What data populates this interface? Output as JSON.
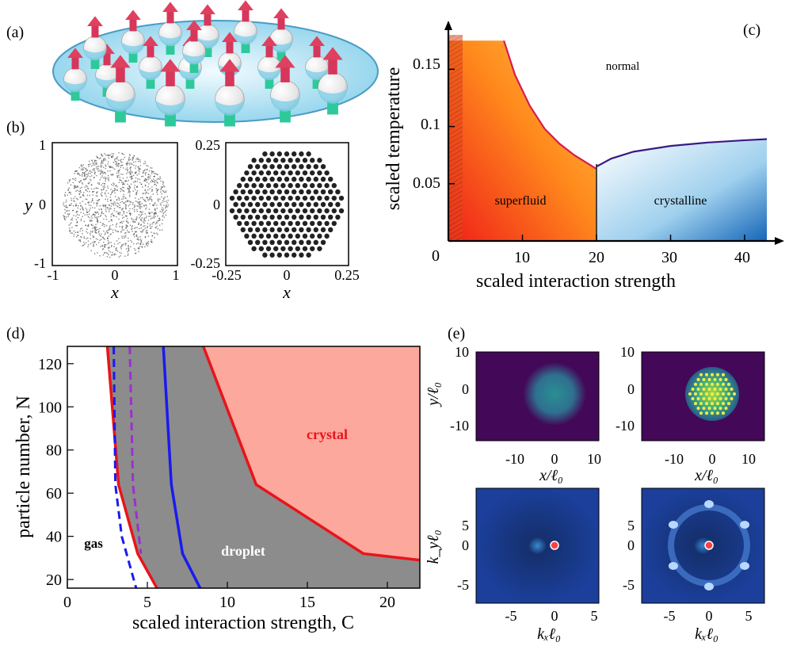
{
  "panel_labels": {
    "a": "(a)",
    "b": "(b)",
    "c": "(c)",
    "d": "(d)",
    "e": "(e)"
  },
  "colors": {
    "spin_arrow": "#d6365a",
    "spin_base": "#2ec99a",
    "disk": "#bfe6f2",
    "superfluid": "#ff8c1a",
    "crystalline": "#7fbde8",
    "gas": "#ffffff",
    "droplet": "#8c8c8c",
    "crystal": "#fca89c",
    "red_line": "#e8141c",
    "blue_line": "#1a1aee",
    "purple_line": "#9b30d0",
    "density_bg": "#430857",
    "momentum_bg": "#0c1b55"
  },
  "panel_b": {
    "left": {
      "xticks": [
        "-1",
        "0",
        "1"
      ],
      "yticks": [
        "1",
        "0",
        "-1"
      ],
      "xlabel": "x",
      "ylabel": "y"
    },
    "right": {
      "xticks": [
        "-0.25",
        "0",
        "0.25"
      ],
      "yticks": [
        "0.25",
        "0",
        "-0.25"
      ],
      "xlabel": "x"
    }
  },
  "panel_c": {
    "ylabel": "scaled temperature",
    "xlabel": "scaled interaction strength",
    "yticks": [
      "0.15",
      "0.1",
      "0.05"
    ],
    "xticks": [
      "0",
      "10",
      "20",
      "30",
      "40"
    ],
    "region_labels": {
      "normal": "normal",
      "superfluid": "superfluid",
      "crystalline": "crystalline"
    }
  },
  "panel_e": {
    "density_xticks": [
      "-10",
      "0",
      "10"
    ],
    "density_yticks": [
      "10",
      "0",
      "-10"
    ],
    "density_xlabel": "x/ℓ₀",
    "density_ylabel": "y/ℓ₀",
    "momentum_xticks": [
      "-5",
      "0",
      "5"
    ],
    "momentum_yticks": [
      "5",
      "0",
      "-5"
    ],
    "momentum_xlabel": "kₓℓ₀",
    "momentum_ylabel": "k_yℓ₀"
  },
  "chart_data": [
    {
      "panel": "c",
      "type": "area",
      "title": "",
      "xlabel": "scaled interaction strength",
      "ylabel": "scaled temperature",
      "xlim": [
        0,
        43
      ],
      "ylim": [
        0,
        0.18
      ],
      "series": [
        {
          "name": "superfluid boundary",
          "x": [
            7.5,
            9,
            11,
            13,
            15,
            17,
            19,
            20
          ],
          "y": [
            0.175,
            0.145,
            0.118,
            0.098,
            0.085,
            0.075,
            0.067,
            0.063
          ]
        },
        {
          "name": "crystalline boundary",
          "x": [
            20,
            22,
            25,
            30,
            35,
            40,
            43
          ],
          "y": [
            0.065,
            0.072,
            0.078,
            0.083,
            0.086,
            0.088,
            0.089
          ]
        }
      ],
      "regions": [
        "normal",
        "superfluid",
        "crystalline"
      ]
    },
    {
      "panel": "d",
      "type": "area",
      "title": "",
      "xlabel": "scaled interaction strength, C",
      "ylabel": "particle number, N",
      "xlim": [
        0,
        22
      ],
      "ylim": [
        16,
        128
      ],
      "xticks": [
        "0",
        "5",
        "10",
        "15",
        "20"
      ],
      "yticks": [
        "20",
        "40",
        "60",
        "80",
        "100",
        "120"
      ],
      "series": [
        {
          "name": "gas boundary (red)",
          "x": [
            2.5,
            3.2,
            4.4,
            5.6
          ],
          "y": [
            128,
            64,
            32,
            16
          ]
        },
        {
          "name": "blue dashed",
          "x": [
            2.9,
            3.0,
            3.4,
            4.3
          ],
          "y": [
            128,
            64,
            40,
            16
          ]
        },
        {
          "name": "purple dashed",
          "x": [
            3.9,
            4.1,
            4.6
          ],
          "y": [
            128,
            64,
            32
          ]
        },
        {
          "name": "blue solid",
          "x": [
            6.0,
            6.5,
            7.2,
            8.3
          ],
          "y": [
            128,
            64,
            32,
            16
          ]
        },
        {
          "name": "crystal boundary (red)",
          "x": [
            8.5,
            11.8,
            18.5,
            22
          ],
          "y": [
            128,
            64,
            32,
            29
          ]
        }
      ],
      "region_labels": {
        "gas": "gas",
        "droplet": "droplet",
        "crystal": "crystal"
      }
    }
  ]
}
